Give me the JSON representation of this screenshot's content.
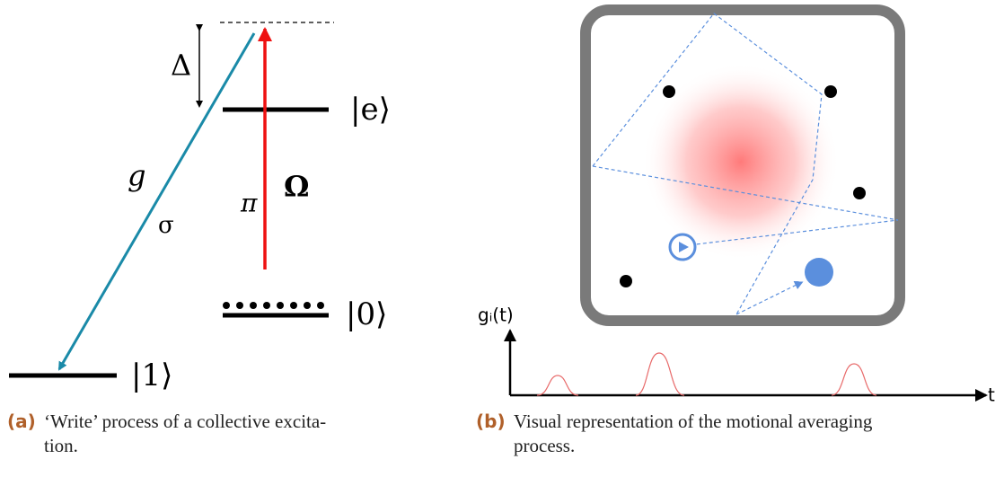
{
  "panel_a": {
    "labels": {
      "detuning": "Δ",
      "excited": "|e⟩",
      "ground0": "|0⟩",
      "ground1": "|1⟩",
      "coupling": "g",
      "sigma": "σ",
      "pi": "π",
      "rabi": "Ω"
    },
    "caption": {
      "tag": "(a)",
      "lines": [
        "‘Write’ process of a collective excita-",
        "tion."
      ]
    }
  },
  "panel_b": {
    "axis": {
      "y_label": "gᵢ(t)",
      "x_label": "t"
    },
    "caption": {
      "tag": "(b)",
      "lines": [
        "Visual representation of the motional averaging",
        "process."
      ]
    }
  }
}
